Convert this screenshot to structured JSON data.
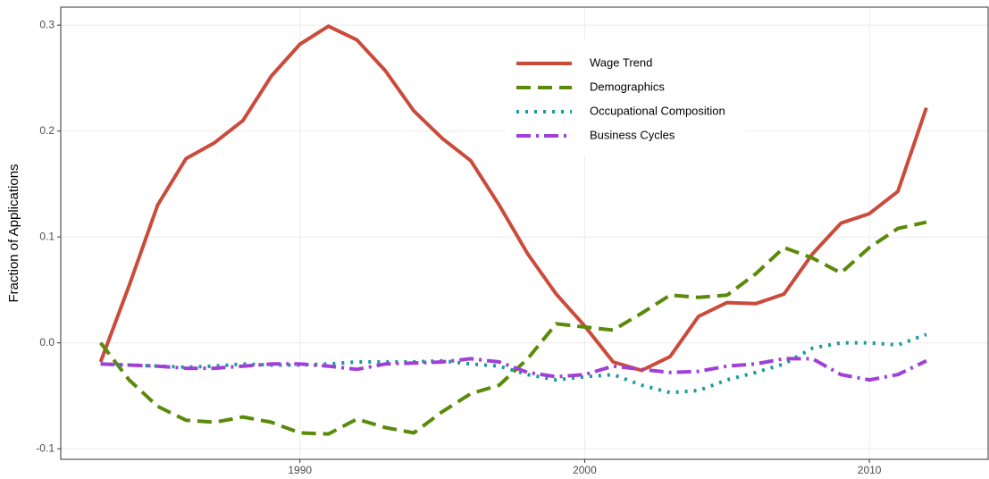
{
  "chart_data": {
    "type": "line",
    "y_label": "Fraction of Applications",
    "x": [
      1983,
      1984,
      1985,
      1986,
      1987,
      1988,
      1989,
      1990,
      1991,
      1992,
      1993,
      1994,
      1995,
      1996,
      1997,
      1998,
      1999,
      2000,
      2001,
      2002,
      2003,
      2004,
      2005,
      2006,
      2007,
      2008,
      2009,
      2010,
      2011,
      2012
    ],
    "series": [
      {
        "name": "Wage Trend",
        "color": "#cb4b3b",
        "linestyle": "solid",
        "values": [
          -0.018,
          0.054,
          0.13,
          0.174,
          0.189,
          0.21,
          0.252,
          0.282,
          0.299,
          0.286,
          0.257,
          0.219,
          0.193,
          0.172,
          0.13,
          0.084,
          0.046,
          0.016,
          -0.018,
          -0.026,
          -0.013,
          0.025,
          0.038,
          0.037,
          0.046,
          0.084,
          0.113,
          0.122,
          0.143,
          0.222
        ]
      },
      {
        "name": "Demographics",
        "color": "#5a8a0a",
        "linestyle": "dashed",
        "values": [
          0.0,
          -0.035,
          -0.06,
          -0.073,
          -0.075,
          -0.07,
          -0.075,
          -0.085,
          -0.086,
          -0.072,
          -0.08,
          -0.085,
          -0.065,
          -0.048,
          -0.04,
          -0.015,
          0.018,
          0.015,
          0.012,
          0.028,
          0.045,
          0.043,
          0.045,
          0.065,
          0.09,
          0.08,
          0.066,
          0.09,
          0.108,
          0.114
        ]
      },
      {
        "name": "Occupational Composition",
        "color": "#1a9a9a",
        "linestyle": "dotted",
        "values": [
          -0.02,
          -0.021,
          -0.022,
          -0.023,
          -0.022,
          -0.02,
          -0.021,
          -0.021,
          -0.02,
          -0.018,
          -0.018,
          -0.018,
          -0.017,
          -0.02,
          -0.022,
          -0.03,
          -0.035,
          -0.032,
          -0.03,
          -0.04,
          -0.047,
          -0.045,
          -0.035,
          -0.028,
          -0.02,
          -0.005,
          0.0,
          0.0,
          -0.002,
          0.008
        ]
      },
      {
        "name": "Business Cycles",
        "color": "#a040d8",
        "linestyle": "dashdot",
        "values": [
          -0.02,
          -0.021,
          -0.022,
          -0.024,
          -0.024,
          -0.022,
          -0.02,
          -0.02,
          -0.022,
          -0.025,
          -0.02,
          -0.019,
          -0.018,
          -0.015,
          -0.018,
          -0.028,
          -0.032,
          -0.03,
          -0.022,
          -0.025,
          -0.028,
          -0.027,
          -0.022,
          -0.02,
          -0.015,
          -0.015,
          -0.03,
          -0.035,
          -0.03,
          -0.017
        ]
      }
    ],
    "xlim": [
      1981.6,
      2014.2
    ],
    "ylim": [
      -0.11,
      0.317
    ],
    "xticks": [
      1990,
      2000,
      2010
    ],
    "yticks": [
      -0.1,
      {
        "value": 0,
        "label": "0.0"
      },
      0.1,
      0.2,
      0.3
    ],
    "grid": true
  }
}
